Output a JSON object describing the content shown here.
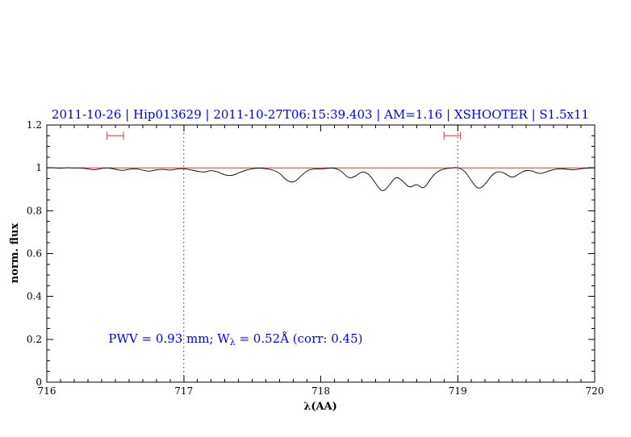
{
  "colors": {
    "title": "#0000ee",
    "annotation": "#0000ee",
    "spectrum": "#000000",
    "continuum": "#cc2222",
    "marker": "#cc4444",
    "guideline": "#333333",
    "frame": "#000000"
  },
  "chart_data": {
    "type": "line",
    "title": "2011-10-26 | Hip013629 | 2011-10-27T06:15:39.403 | AM=1.16 | XSHOOTER | S1.5x11",
    "xlabel": "λ(AA)",
    "ylabel": "norm. flux",
    "xlim": [
      716,
      720
    ],
    "ylim": [
      0,
      1.2
    ],
    "xticks": [
      716,
      717,
      718,
      719,
      720
    ],
    "xtick_labels": [
      "716",
      "717",
      "718",
      "719",
      "720"
    ],
    "yticks": [
      0,
      0.2,
      0.4,
      0.6,
      0.8,
      1,
      1.2
    ],
    "ytick_labels": [
      "0",
      "0.2",
      "0.4",
      "0.6",
      "0.8",
      "1",
      "1.2"
    ],
    "x_minor_step": 0.1,
    "y_minor_step": 0.05,
    "grid": false,
    "legend": "none",
    "vlines": [
      717,
      719
    ],
    "continuum_y": 1.0,
    "range_markers": [
      {
        "x1": 716.44,
        "x2": 716.56,
        "y": 1.15
      },
      {
        "x1": 718.9,
        "x2": 719.02,
        "y": 1.15
      }
    ],
    "annotation": {
      "prefix": "PWV = 0.93 mm; W",
      "sub": "λ",
      "suffix": " = 0.52Å (corr: 0.45)",
      "x": 716.45,
      "y": 0.2
    },
    "series": [
      {
        "name": "spectrum",
        "points": [
          [
            716.0,
            1.0
          ],
          [
            716.05,
            1.001
          ],
          [
            716.1,
            0.998
          ],
          [
            716.15,
            1.001
          ],
          [
            716.2,
            0.999
          ],
          [
            716.25,
            1.0
          ],
          [
            716.3,
            0.995
          ],
          [
            716.35,
            0.99
          ],
          [
            716.4,
            0.998
          ],
          [
            716.45,
            1.0
          ],
          [
            716.5,
            0.994
          ],
          [
            716.55,
            0.986
          ],
          [
            716.6,
            0.994
          ],
          [
            716.65,
            0.997
          ],
          [
            716.7,
            0.989
          ],
          [
            716.75,
            0.983
          ],
          [
            716.8,
            0.991
          ],
          [
            716.85,
            0.994
          ],
          [
            716.9,
            0.988
          ],
          [
            716.95,
            0.995
          ],
          [
            717.0,
            0.997
          ],
          [
            717.05,
            0.991
          ],
          [
            717.1,
            0.984
          ],
          [
            717.15,
            0.979
          ],
          [
            717.2,
            0.989
          ],
          [
            717.25,
            0.981
          ],
          [
            717.3,
            0.966
          ],
          [
            717.35,
            0.963
          ],
          [
            717.4,
            0.976
          ],
          [
            717.45,
            0.989
          ],
          [
            717.5,
            0.996
          ],
          [
            717.55,
            0.999
          ],
          [
            717.6,
            0.996
          ],
          [
            717.65,
            0.991
          ],
          [
            717.7,
            0.976
          ],
          [
            717.75,
            0.941
          ],
          [
            717.8,
            0.93
          ],
          [
            717.85,
            0.958
          ],
          [
            717.9,
            0.988
          ],
          [
            717.95,
            0.996
          ],
          [
            718.0,
            0.994
          ],
          [
            718.05,
            0.998
          ],
          [
            718.1,
            1.0
          ],
          [
            718.15,
            0.986
          ],
          [
            718.2,
            0.951
          ],
          [
            718.25,
            0.958
          ],
          [
            718.3,
            0.984
          ],
          [
            718.35,
            0.973
          ],
          [
            718.4,
            0.928
          ],
          [
            718.45,
            0.884
          ],
          [
            718.5,
            0.918
          ],
          [
            718.55,
            0.962
          ],
          [
            718.6,
            0.938
          ],
          [
            718.65,
            0.904
          ],
          [
            718.7,
            0.928
          ],
          [
            718.75,
            0.898
          ],
          [
            718.8,
            0.948
          ],
          [
            718.85,
            0.983
          ],
          [
            718.9,
            0.995
          ],
          [
            718.95,
            1.0
          ],
          [
            719.0,
            1.002
          ],
          [
            719.05,
            0.988
          ],
          [
            719.1,
            0.938
          ],
          [
            719.15,
            0.898
          ],
          [
            719.2,
            0.922
          ],
          [
            719.25,
            0.968
          ],
          [
            719.3,
            0.986
          ],
          [
            719.35,
            0.972
          ],
          [
            719.4,
            0.951
          ],
          [
            719.45,
            0.974
          ],
          [
            719.5,
            0.99
          ],
          [
            719.55,
            0.984
          ],
          [
            719.6,
            0.971
          ],
          [
            719.65,
            0.982
          ],
          [
            719.7,
            0.992
          ],
          [
            719.75,
            0.997
          ],
          [
            719.8,
            0.993
          ],
          [
            719.85,
            0.991
          ],
          [
            719.9,
            0.996
          ],
          [
            719.95,
            0.999
          ],
          [
            720.0,
            1.0
          ]
        ]
      }
    ]
  }
}
